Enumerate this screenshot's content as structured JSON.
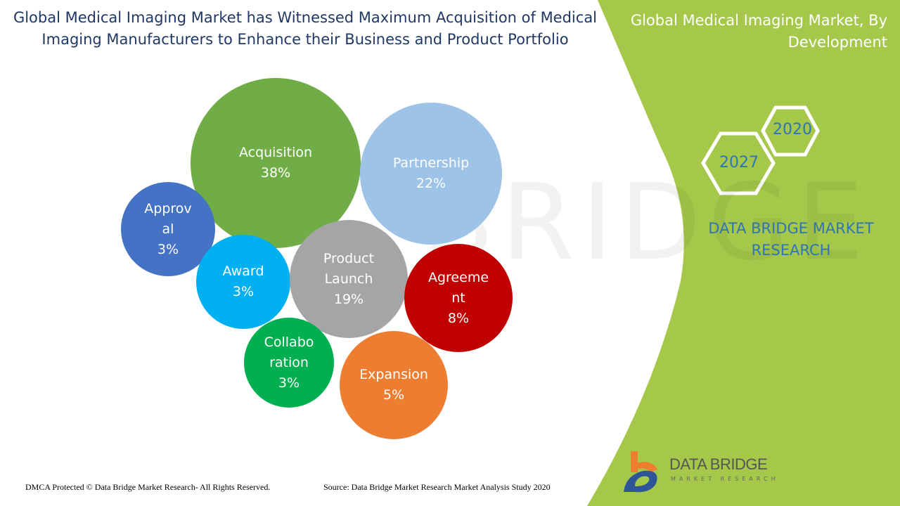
{
  "header": {
    "title": "Global Medical Imaging Market has Witnessed Maximum Acquisition of Medical Imaging Manufacturers to Enhance their Business and Product Portfolio",
    "side_title": "Global Medical Imaging Market, By Development"
  },
  "years": {
    "start": "2020",
    "end": "2027"
  },
  "brand": {
    "name": "DATA BRIDGE MARKET RESEARCH",
    "logo_text": "DATA BRIDGE",
    "logo_sub": "MARKET RESEARCH"
  },
  "footer": {
    "copyright": "DMCA Protected © Data Bridge Market Research- All Rights Reserved.",
    "source": "Source: Data Bridge Market Research Market Analysis Study 2020"
  },
  "colors": {
    "accent_green": "#a5c84a",
    "title_blue": "#1f3864",
    "brand_blue": "#2e75b6"
  },
  "chart_data": {
    "type": "bubble",
    "title": "Global Medical Imaging Market, By Development",
    "unit": "%",
    "items": [
      {
        "label": "Acquisition",
        "value": 38,
        "display": "38%",
        "color": "#70ad47"
      },
      {
        "label": "Partnership",
        "value": 22,
        "display": "22%",
        "color": "#9dc3e6"
      },
      {
        "label": "Approval",
        "value": 3,
        "display": "3%",
        "color": "#4472c4"
      },
      {
        "label": "Award",
        "value": 3,
        "display": "3%",
        "color": "#00b0f0"
      },
      {
        "label": "Product Launch",
        "value": 19,
        "display": "19%",
        "color": "#a5a5a5"
      },
      {
        "label": "Agreement",
        "value": 8,
        "display": "8%",
        "color": "#c00000"
      },
      {
        "label": "Collaboration",
        "value": 3,
        "display": "3%",
        "color": "#00b050"
      },
      {
        "label": "Expansion",
        "value": 5,
        "display": "5%",
        "color": "#ed7d31"
      }
    ]
  }
}
